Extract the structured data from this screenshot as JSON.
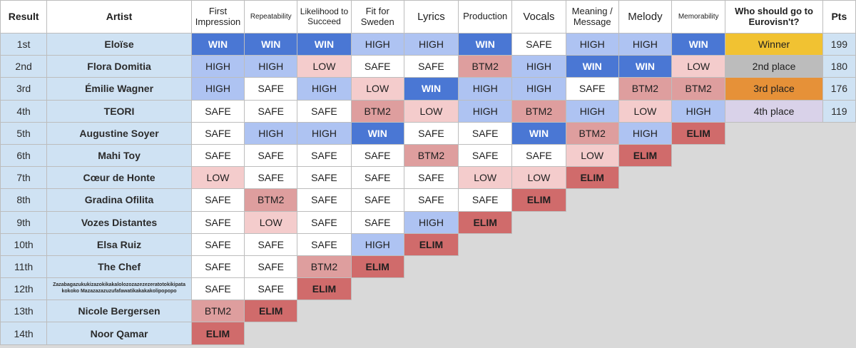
{
  "headers": {
    "result": "Result",
    "artist": "Artist",
    "first_impression": "First Impression",
    "repeatability": "Repeatability",
    "likelihood": "Likelihood to Succeed",
    "fit_for_sweden": "Fit for Sweden",
    "lyrics": "Lyrics",
    "production": "Production",
    "vocals": "Vocals",
    "meaning": "Meaning / Message",
    "melody": "Melody",
    "memorability": "Memorability",
    "eurovision": "Who should go to Eurovisn't?",
    "pts": "Pts"
  },
  "rows": [
    {
      "result": "1st",
      "artist": "Eloïse",
      "scores": [
        "WIN",
        "WIN",
        "WIN",
        "HIGH",
        "HIGH",
        "WIN",
        "SAFE",
        "HIGH",
        "HIGH",
        "WIN"
      ],
      "place": "Winner",
      "pts": "199"
    },
    {
      "result": "2nd",
      "artist": "Flora Domitia",
      "scores": [
        "HIGH",
        "HIGH",
        "LOW",
        "SAFE",
        "SAFE",
        "BTM2",
        "HIGH",
        "WIN",
        "WIN",
        "LOW"
      ],
      "place": "2nd place",
      "pts": "180"
    },
    {
      "result": "3rd",
      "artist": "Émilie Wagner",
      "scores": [
        "HIGH",
        "SAFE",
        "HIGH",
        "LOW",
        "WIN",
        "HIGH",
        "HIGH",
        "SAFE",
        "BTM2",
        "BTM2"
      ],
      "place": "3rd place",
      "pts": "176"
    },
    {
      "result": "4th",
      "artist": "TEORI",
      "scores": [
        "SAFE",
        "SAFE",
        "SAFE",
        "BTM2",
        "LOW",
        "HIGH",
        "BTM2",
        "HIGH",
        "LOW",
        "HIGH"
      ],
      "place": "4th place",
      "pts": "119"
    },
    {
      "result": "5th",
      "artist": "Augustine Soyer",
      "scores": [
        "SAFE",
        "HIGH",
        "HIGH",
        "WIN",
        "SAFE",
        "SAFE",
        "WIN",
        "BTM2",
        "HIGH",
        "ELIM"
      ]
    },
    {
      "result": "6th",
      "artist": "Mahi Toy",
      "scores": [
        "SAFE",
        "SAFE",
        "SAFE",
        "SAFE",
        "BTM2",
        "SAFE",
        "SAFE",
        "LOW",
        "ELIM"
      ]
    },
    {
      "result": "7th",
      "artist": "Cœur de Honte",
      "scores": [
        "LOW",
        "SAFE",
        "SAFE",
        "SAFE",
        "SAFE",
        "LOW",
        "LOW",
        "ELIM"
      ]
    },
    {
      "result": "8th",
      "artist": "Gradina Ofilita",
      "scores": [
        "SAFE",
        "BTM2",
        "SAFE",
        "SAFE",
        "SAFE",
        "SAFE",
        "ELIM"
      ]
    },
    {
      "result": "9th",
      "artist": "Vozes Distantes",
      "scores": [
        "SAFE",
        "LOW",
        "SAFE",
        "SAFE",
        "HIGH",
        "ELIM"
      ]
    },
    {
      "result": "10th",
      "artist": "Elsa Ruiz",
      "scores": [
        "SAFE",
        "SAFE",
        "SAFE",
        "HIGH",
        "ELIM"
      ]
    },
    {
      "result": "11th",
      "artist": "The Chef",
      "scores": [
        "SAFE",
        "SAFE",
        "BTM2",
        "ELIM"
      ]
    },
    {
      "result": "12th",
      "artist": "Zazabagazukukizazokikakalolozozazezezeratotokikipata kokoko Mazazazazuzufafawatikakakakolipopopo",
      "scores": [
        "SAFE",
        "SAFE",
        "ELIM"
      ]
    },
    {
      "result": "13th",
      "artist": "Nicole Bergersen",
      "scores": [
        "BTM2",
        "ELIM"
      ]
    },
    {
      "result": "14th",
      "artist": "Noor Qamar",
      "scores": [
        "ELIM"
      ]
    }
  ]
}
